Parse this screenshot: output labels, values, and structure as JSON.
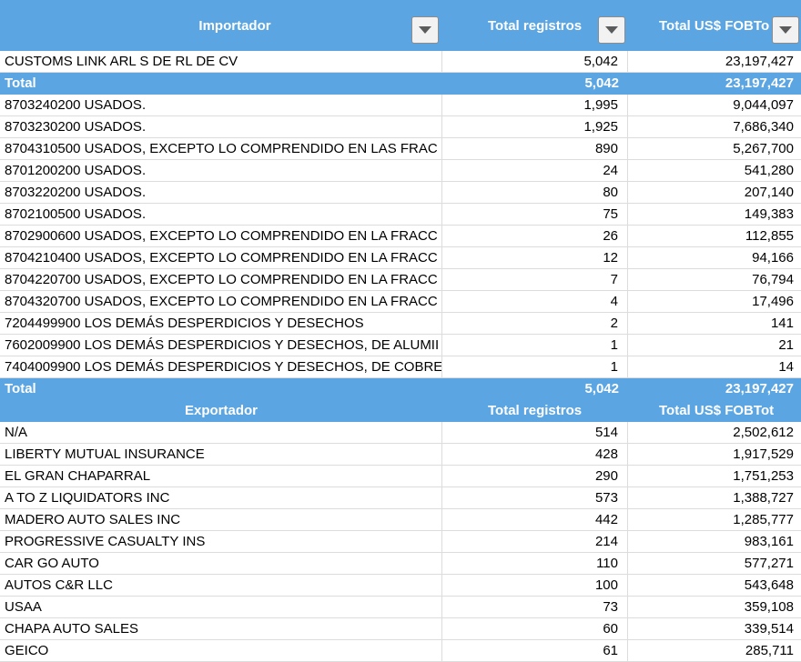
{
  "header": {
    "col1": "Importador",
    "col2": "Total registros",
    "col3": "Total US$ FOBTot",
    "col3_visible": "Total US$ FOBTo",
    "filter_icon": "dropdown-filter-icon"
  },
  "importer": {
    "name": "CUSTOMS LINK ARL S DE RL DE CV",
    "registros": "5,042",
    "fob": "23,197,427"
  },
  "total_label": "Total",
  "total1": {
    "registros": "5,042",
    "fob": "23,197,427"
  },
  "products": [
    {
      "name": "8703240200 USADOS.",
      "registros": "1,995",
      "fob": "9,044,097"
    },
    {
      "name": "8703230200 USADOS.",
      "registros": "1,925",
      "fob": "7,686,340"
    },
    {
      "name": "8704310500 USADOS, EXCEPTO LO COMPRENDIDO EN LAS FRAC",
      "registros": "890",
      "fob": "5,267,700"
    },
    {
      "name": "8701200200 USADOS.",
      "registros": "24",
      "fob": "541,280"
    },
    {
      "name": "8703220200 USADOS.",
      "registros": "80",
      "fob": "207,140"
    },
    {
      "name": "8702100500 USADOS.",
      "registros": "75",
      "fob": "149,383"
    },
    {
      "name": "8702900600 USADOS, EXCEPTO LO COMPRENDIDO EN LA FRACC",
      "registros": "26",
      "fob": "112,855"
    },
    {
      "name": "8704210400 USADOS, EXCEPTO LO COMPRENDIDO EN LA FRACC",
      "registros": "12",
      "fob": "94,166"
    },
    {
      "name": "8704220700 USADOS, EXCEPTO LO COMPRENDIDO EN LA FRACC",
      "registros": "7",
      "fob": "76,794"
    },
    {
      "name": "8704320700 USADOS, EXCEPTO LO COMPRENDIDO EN LA FRACC",
      "registros": "4",
      "fob": "17,496"
    },
    {
      "name": "7204499900 LOS DEMÁS DESPERDICIOS Y DESECHOS",
      "registros": "2",
      "fob": "141"
    },
    {
      "name": "7602009900 LOS DEMÁS DESPERDICIOS Y DESECHOS, DE ALUMII",
      "registros": "1",
      "fob": "21"
    },
    {
      "name": "7404009900 LOS DEMÁS DESPERDICIOS Y DESECHOS, DE COBRE",
      "registros": "1",
      "fob": "14"
    }
  ],
  "total2": {
    "registros": "5,042",
    "fob": "23,197,427"
  },
  "exporter_header": {
    "col1": "Exportador",
    "col2": "Total registros",
    "col3": "Total US$ FOBTot"
  },
  "exporters": [
    {
      "name": "N/A",
      "registros": "514",
      "fob": "2,502,612"
    },
    {
      "name": "LIBERTY MUTUAL INSURANCE",
      "registros": "428",
      "fob": "1,917,529"
    },
    {
      "name": "EL GRAN CHAPARRAL",
      "registros": "290",
      "fob": "1,751,253"
    },
    {
      "name": "A TO Z LIQUIDATORS INC",
      "registros": "573",
      "fob": "1,388,727"
    },
    {
      "name": "MADERO AUTO SALES INC",
      "registros": "442",
      "fob": "1,285,777"
    },
    {
      "name": "PROGRESSIVE CASUALTY INS",
      "registros": "214",
      "fob": "983,161"
    },
    {
      "name": "CAR GO AUTO",
      "registros": "110",
      "fob": "577,271"
    },
    {
      "name": "AUTOS C&R LLC",
      "registros": "100",
      "fob": "543,648"
    },
    {
      "name": "USAA",
      "registros": "73",
      "fob": "359,108"
    },
    {
      "name": "CHAPA AUTO SALES",
      "registros": "60",
      "fob": "339,514"
    },
    {
      "name": "GEICO",
      "registros": "61",
      "fob": "285,711"
    }
  ],
  "colors": {
    "header_band": "#5aa5e2",
    "gridline": "#dcdcdc"
  }
}
